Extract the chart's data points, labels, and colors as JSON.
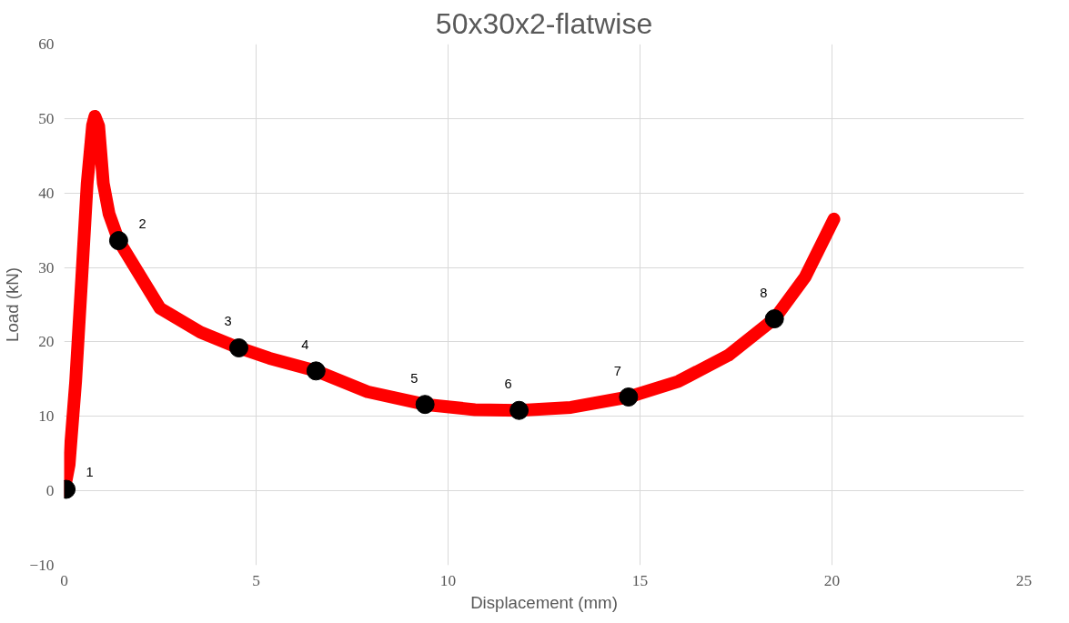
{
  "chart_data": {
    "type": "line",
    "title": "50x30x2-flatwise",
    "xlabel": "Displacement (mm)",
    "ylabel": "Load (kN)",
    "xlim": [
      0,
      25
    ],
    "ylim": [
      -10,
      60
    ],
    "xticks": [
      0,
      5,
      10,
      15,
      20,
      25
    ],
    "yticks": [
      -10,
      0,
      10,
      20,
      30,
      40,
      50,
      60
    ],
    "grid": true,
    "line_style": "solid",
    "series": [
      {
        "color": "#ff0000",
        "x": [
          0,
          0.13,
          0.3,
          0.46,
          0.6,
          0.74,
          0.8,
          0.9,
          1.02,
          1.17,
          1.42,
          2.5,
          3.55,
          4.55,
          5.35,
          6.56,
          7.9,
          9.4,
          10.7,
          11.85,
          13.2,
          14.7,
          16.0,
          17.3,
          18.5,
          19.3,
          20.05
        ],
        "values": [
          0,
          3.5,
          14.7,
          28.7,
          41.3,
          49.1,
          50.3,
          49,
          41.3,
          37.2,
          33.6,
          24.5,
          21.3,
          19.2,
          17.8,
          16.1,
          13.3,
          11.6,
          10.9,
          10.8,
          11.2,
          12.6,
          14.7,
          18.2,
          23.1,
          28.7,
          36.5
        ]
      },
      {
        "type": "scatter",
        "marker": "circle",
        "color": "#000000",
        "x": [
          0.05,
          1.42,
          4.55,
          6.56,
          9.4,
          11.85,
          14.7,
          18.5
        ],
        "values": [
          0.2,
          33.6,
          19.2,
          16.1,
          11.6,
          10.8,
          12.6,
          23.1
        ]
      }
    ],
    "annotations": [
      {
        "text": "1",
        "x": 0.05,
        "y": 0.2
      },
      {
        "text": "2",
        "x": 1.42,
        "y": 33.6
      },
      {
        "text": "3",
        "x": 4.55,
        "y": 19.2
      },
      {
        "text": "4",
        "x": 6.56,
        "y": 16.1
      },
      {
        "text": "5",
        "x": 9.4,
        "y": 11.6
      },
      {
        "text": "6",
        "x": 11.85,
        "y": 10.8
      },
      {
        "text": "7",
        "x": 14.7,
        "y": 12.6
      },
      {
        "text": "8",
        "x": 18.5,
        "y": 23.1
      }
    ]
  }
}
